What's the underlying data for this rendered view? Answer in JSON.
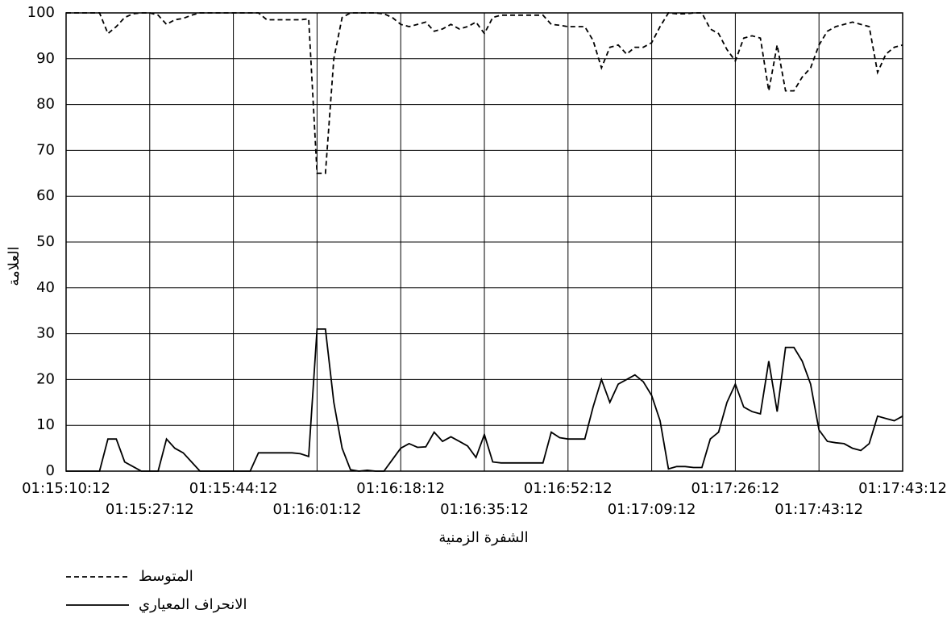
{
  "chart_data": {
    "type": "line",
    "xlabel": "الشفرة الزمنية",
    "ylabel": "العلامة",
    "categories": [
      "01:15:10:12",
      null,
      null,
      null,
      null,
      null,
      null,
      null,
      null,
      null,
      "01:15:27:12",
      null,
      null,
      null,
      null,
      null,
      null,
      null,
      null,
      null,
      "01:15:44:12",
      null,
      null,
      null,
      null,
      null,
      null,
      null,
      null,
      null,
      "01:16:01:12",
      null,
      null,
      null,
      null,
      null,
      null,
      null,
      null,
      null,
      "01:16:18:12",
      null,
      null,
      null,
      null,
      null,
      null,
      null,
      null,
      null,
      "01:16:35:12",
      null,
      null,
      null,
      null,
      null,
      null,
      null,
      null,
      null,
      "01:16:52:12",
      null,
      null,
      null,
      null,
      null,
      null,
      null,
      null,
      null,
      "01:17:09:12",
      null,
      null,
      null,
      null,
      null,
      null,
      null,
      null,
      null,
      "01:17:26:12",
      null,
      null,
      null,
      null,
      null,
      null,
      null,
      null,
      null,
      "01:17:43:12",
      null,
      null,
      null,
      null,
      null,
      null,
      null,
      null,
      null,
      "01:17:43:12"
    ],
    "series": [
      {
        "name": "المتوسط",
        "color": "#000000",
        "style": "dashed",
        "values": [
          100,
          100,
          100,
          100,
          100,
          95.5,
          97,
          99,
          99.8,
          100,
          100,
          99.5,
          97.5,
          98.5,
          98.8,
          99.5,
          100,
          100,
          100,
          100,
          100,
          100,
          100,
          100,
          98.5,
          98.5,
          98.5,
          98.5,
          98.5,
          98.7,
          65,
          65,
          90,
          99,
          100,
          100,
          100,
          100,
          99.8,
          99,
          97.5,
          97,
          97.5,
          98,
          96,
          96.5,
          97.5,
          96.5,
          97,
          98,
          95.5,
          99,
          99.5,
          99.5,
          99.5,
          99.5,
          99.5,
          99.5,
          97.5,
          97.3,
          97,
          97,
          97,
          94,
          88,
          92.5,
          93,
          91,
          92.5,
          92.5,
          93.5,
          97,
          100,
          99.8,
          99.8,
          100,
          100,
          96.5,
          95.5,
          92,
          89.5,
          94.5,
          95,
          94.5,
          83,
          93,
          83,
          83,
          86,
          88,
          93,
          96,
          97,
          97.5,
          98,
          97.5,
          97,
          87,
          91,
          92.5,
          93
        ]
      },
      {
        "name": "الانحراف المعياري",
        "color": "#000000",
        "style": "solid",
        "values": [
          0,
          0,
          0,
          0,
          0,
          7,
          7,
          2,
          1,
          0,
          0,
          0,
          7,
          5,
          4,
          2,
          0,
          0,
          0,
          0,
          0,
          0,
          0,
          4,
          4,
          4,
          4,
          4,
          3.8,
          3.2,
          31,
          31,
          15,
          5,
          0.3,
          0,
          0.2,
          0,
          0,
          2.5,
          5,
          6,
          5.2,
          5.3,
          8.5,
          6.5,
          7.5,
          6.5,
          5.5,
          3,
          8,
          2,
          1.8,
          1.8,
          1.8,
          1.8,
          1.8,
          1.8,
          8.5,
          7.3,
          7,
          7,
          7,
          14,
          20,
          15,
          19,
          20,
          21,
          19.5,
          16.5,
          11,
          0.5,
          1,
          1,
          0.8,
          0.8,
          7,
          8.5,
          15,
          19,
          14,
          13,
          12.5,
          24,
          13,
          27,
          27,
          24,
          19,
          9,
          6.5,
          6.2,
          6,
          5,
          4.5,
          6,
          12,
          11.5,
          11,
          12
        ]
      }
    ],
    "ylim": [
      0,
      100
    ],
    "yticks": [
      0,
      10,
      20,
      30,
      40,
      50,
      60,
      70,
      80,
      90,
      100
    ],
    "grid": true,
    "legend": "bottom-left"
  }
}
